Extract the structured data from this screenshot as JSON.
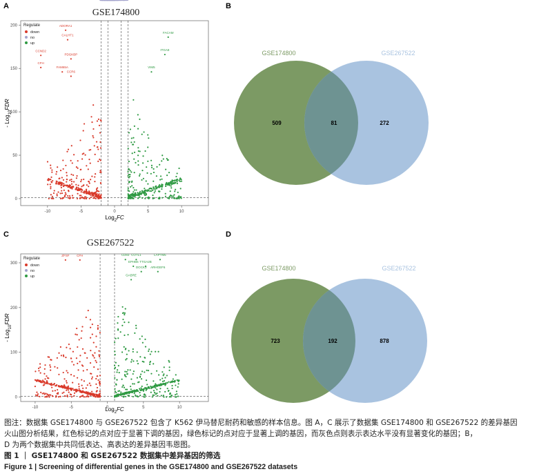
{
  "panels": {
    "A": "A",
    "B": "B",
    "C": "C",
    "D": "D"
  },
  "chart_data": [
    {
      "type": "scatter",
      "subtype": "volcano",
      "panel": "A",
      "title": "GSE174800",
      "xlabel_main": "Log",
      "xlabel_sub": "2",
      "xlabel_tail": "FC",
      "ylabel_pre": "- Log",
      "ylabel_sub": "10",
      "ylabel_tail": "FDR",
      "xlim": [
        -14,
        14
      ],
      "ylim": [
        -8,
        205
      ],
      "xticks": [
        -10,
        -5,
        0,
        5,
        10
      ],
      "yticks": [
        0,
        50,
        100,
        150,
        200
      ],
      "vlines": [
        -2,
        -1,
        1,
        2
      ],
      "hline": 1.3,
      "legend": {
        "title": "Regulate",
        "items": [
          "down",
          "no",
          "up"
        ]
      },
      "labels_down": [
        {
          "x": -7.3,
          "y": 198,
          "text": "ADORA1"
        },
        {
          "x": -7.0,
          "y": 187,
          "text": "CALHT1"
        },
        {
          "x": -11.0,
          "y": 169,
          "text": "CCND2"
        },
        {
          "x": -6.5,
          "y": 165,
          "text": "PDGKBP"
        },
        {
          "x": -11.0,
          "y": 155,
          "text": "CFH"
        },
        {
          "x": -7.8,
          "y": 150,
          "text": "FAM65A"
        },
        {
          "x": -6.5,
          "y": 145,
          "text": "CCR6"
        }
      ],
      "labels_up": [
        {
          "x": 8.0,
          "y": 190,
          "text": "FACAM"
        },
        {
          "x": 7.5,
          "y": 170,
          "text": "ITGA8"
        },
        {
          "x": 5.5,
          "y": 150,
          "text": "VIM5"
        }
      ]
    },
    {
      "type": "scatter",
      "subtype": "volcano",
      "panel": "C",
      "title": "GSE267522",
      "xlabel_main": "Log",
      "xlabel_sub": "2",
      "xlabel_tail": "FC",
      "ylabel_pre": "- Log",
      "ylabel_sub": "10",
      "ylabel_tail": "FDR",
      "xlim": [
        -12,
        14
      ],
      "ylim": [
        -10,
        320
      ],
      "xticks": [
        -10,
        -5,
        0,
        5,
        10
      ],
      "yticks": [
        0,
        100,
        200,
        300
      ],
      "vlines": [
        -1,
        1
      ],
      "hline": 1.3,
      "legend": {
        "title": "Regulate",
        "items": [
          "down",
          "no",
          "up"
        ]
      },
      "labels_down": [
        {
          "x": -5.8,
          "y": 314,
          "text": "ZFSF"
        },
        {
          "x": -3.8,
          "y": 314,
          "text": "CFH"
        }
      ],
      "labels_up": [
        {
          "x": 2.5,
          "y": 315,
          "text": "CD83"
        },
        {
          "x": 4.0,
          "y": 315,
          "text": "COTL1"
        },
        {
          "x": 7.3,
          "y": 315,
          "text": "LAPTM5"
        },
        {
          "x": 3.6,
          "y": 300,
          "text": "EPHB6"
        },
        {
          "x": 5.3,
          "y": 300,
          "text": "TTGA2B"
        },
        {
          "x": 4.7,
          "y": 288,
          "text": "DOCK2"
        },
        {
          "x": 7.0,
          "y": 288,
          "text": "ARHGEF6"
        },
        {
          "x": 3.3,
          "y": 270,
          "text": "GABRE"
        }
      ]
    },
    {
      "type": "venn",
      "panel": "B",
      "sets": [
        "GSE174800",
        "GSE267522"
      ],
      "left_only": 509,
      "overlap": 81,
      "right_only": 272
    },
    {
      "type": "venn",
      "panel": "D",
      "sets": [
        "GSE174800",
        "GSE267522"
      ],
      "left_only": 723,
      "overlap": 192,
      "right_only": 878
    }
  ],
  "colors": {
    "down": "#d93a2b",
    "no": "#a3a3cc",
    "up": "#2f9a43",
    "venn_left": "#7c9a64",
    "venn_right": "#a9c3e0",
    "venn_overlap": "#6e9392"
  },
  "caption": {
    "line1": "图注：数据集 GSE174800 与 GSE267522 包含了 K562 伊马替尼耐药和敏感的样本信息。图 A，C 展示了数据集 GSE174800 和 GSE267522 的差异基因",
    "line2": "火山图分析结果，红色标记的点对应于显著下调的基因，绿色标记的点对应于显著上调的基因，而灰色点则表示表达水平没有显著变化的基因；B，",
    "line3": "D 为两个数据集中共同低表达、高表达的差异基因韦恩图。",
    "figure_cn": "图 1 ｜ GSE174800 和 GSE267522 数据集中差异基因的筛选",
    "figure_en": "Figure 1  |  Screening of differential genes in the GSE174800 and GSE267522 datasets"
  }
}
